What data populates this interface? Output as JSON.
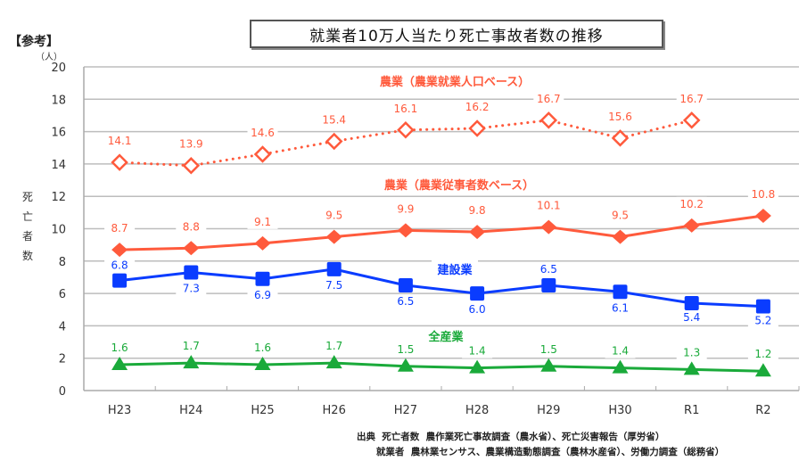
{
  "header": {
    "reference_tag": "【参考】",
    "title": "就業者10万人当たり死亡事故者数の推移"
  },
  "chart_data": {
    "type": "line",
    "title": "就業者10万人当たり死亡事故者数の推移",
    "xlabel": "",
    "ylabel": "死亡者数",
    "y_unit": "（人）",
    "ylim": [
      0,
      20
    ],
    "yticks": [
      0,
      2,
      4,
      6,
      8,
      10,
      12,
      14,
      16,
      18,
      20
    ],
    "grid": true,
    "categories": [
      "H23",
      "H24",
      "H25",
      "H26",
      "H27",
      "H28",
      "H29",
      "H30",
      "R1",
      "R2"
    ],
    "series": [
      {
        "name": "農業（農業就業人口ベース）",
        "color": "#ff5a3c",
        "style": "dotted",
        "marker": "diamond-open",
        "values": [
          14.1,
          13.9,
          14.6,
          15.4,
          16.1,
          16.2,
          16.7,
          15.6,
          16.7,
          null
        ],
        "labels": [
          "14.1",
          "13.9",
          "14.6",
          "15.4",
          "16.1",
          "16.2",
          "16.7",
          "15.6",
          "16.7",
          null
        ]
      },
      {
        "name": "農業（農業従事者数ベース）",
        "color": "#ff5a3c",
        "style": "solid",
        "marker": "diamond",
        "values": [
          8.7,
          8.8,
          9.1,
          9.5,
          9.9,
          9.8,
          10.1,
          9.5,
          10.2,
          10.8
        ],
        "labels": [
          "8.7",
          "8.8",
          "9.1",
          "9.5",
          "9.9",
          "9.8",
          "10.1",
          "9.5",
          "10.2",
          "10.8"
        ]
      },
      {
        "name": "建設業",
        "color": "#0a3cff",
        "style": "solid",
        "marker": "square",
        "values": [
          6.8,
          7.3,
          6.9,
          7.5,
          6.5,
          6.0,
          6.5,
          6.1,
          5.4,
          5.2
        ],
        "labels": [
          "6.8",
          "7.3",
          "6.9",
          "7.5",
          "6.5",
          "6.0",
          "6.5",
          "6.1",
          "5.4",
          "5.2"
        ]
      },
      {
        "name": "全産業",
        "color": "#1aaa3a",
        "style": "solid",
        "marker": "triangle",
        "values": [
          1.6,
          1.7,
          1.6,
          1.7,
          1.5,
          1.4,
          1.5,
          1.4,
          1.3,
          1.2
        ],
        "labels": [
          "1.6",
          "1.7",
          "1.6",
          "1.7",
          "1.5",
          "1.4",
          "1.5",
          "1.4",
          "1.3",
          "1.2"
        ]
      }
    ]
  },
  "source": {
    "line1": "出典  死亡者数  農作業死亡事故調査（農水省）、死亡災害報告（厚労省）",
    "line2": "      就業者  農林業センサス、農業構造動態調査（農林水産省）、労働力調査（総務省）"
  }
}
